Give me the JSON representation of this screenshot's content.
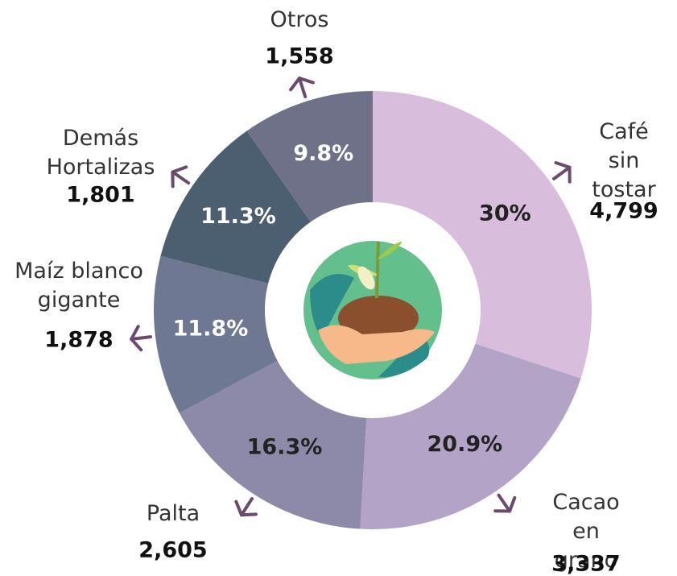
{
  "chart_data": {
    "type": "pie",
    "categories": [
      "Café sin\ntostar",
      "Cacao en grano",
      "Palta",
      "Maíz blanco\ngigante",
      "Demás\nHortalizas",
      "Otros"
    ],
    "values": [
      4799,
      3337,
      2605,
      1878,
      1801,
      1558
    ],
    "value_labels": [
      "4,799",
      "3,337",
      "2,605",
      "1,878",
      "1,801",
      "1,558"
    ],
    "share_labels": [
      "30%",
      "20.9%",
      "16.3%",
      "11.8%",
      "11.3%",
      "9.8%"
    ],
    "colors": [
      "#d8bddc",
      "#b3a4c7",
      "#8d8aa9",
      "#6f7892",
      "#4b5f70",
      "#6f7189"
    ]
  }
}
